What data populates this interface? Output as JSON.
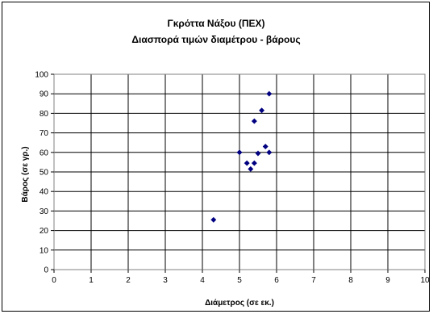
{
  "chart_data": {
    "type": "scatter",
    "title": "Γκρόττα Νάξου (ΠΕΧ)",
    "subtitle": "Διασπορά τιμών διαμέτρου - βάρους",
    "xlabel": "Διάμετρος (σε εκ.)",
    "ylabel": "Βάρος (σε γρ.)",
    "xlim": [
      0,
      10
    ],
    "ylim": [
      0,
      100
    ],
    "x_ticks": [
      "0",
      "1",
      "2",
      "3",
      "4",
      "5",
      "6",
      "7",
      "8",
      "9",
      "10"
    ],
    "y_ticks": [
      "0",
      "10",
      "20",
      "30",
      "40",
      "50",
      "60",
      "70",
      "80",
      "90",
      "100"
    ],
    "grid": true,
    "legend": "none",
    "marker": "diamond",
    "marker_color": "#000080",
    "series": [
      {
        "points": [
          {
            "x": 4.3,
            "y": 25.5
          },
          {
            "x": 5.0,
            "y": 60.0
          },
          {
            "x": 5.2,
            "y": 54.5
          },
          {
            "x": 5.3,
            "y": 51.5
          },
          {
            "x": 5.4,
            "y": 54.5
          },
          {
            "x": 5.4,
            "y": 76.0
          },
          {
            "x": 5.5,
            "y": 59.5
          },
          {
            "x": 5.6,
            "y": 81.5
          },
          {
            "x": 5.7,
            "y": 63.0
          },
          {
            "x": 5.8,
            "y": 60.0
          },
          {
            "x": 5.8,
            "y": 90.0
          }
        ]
      }
    ]
  }
}
